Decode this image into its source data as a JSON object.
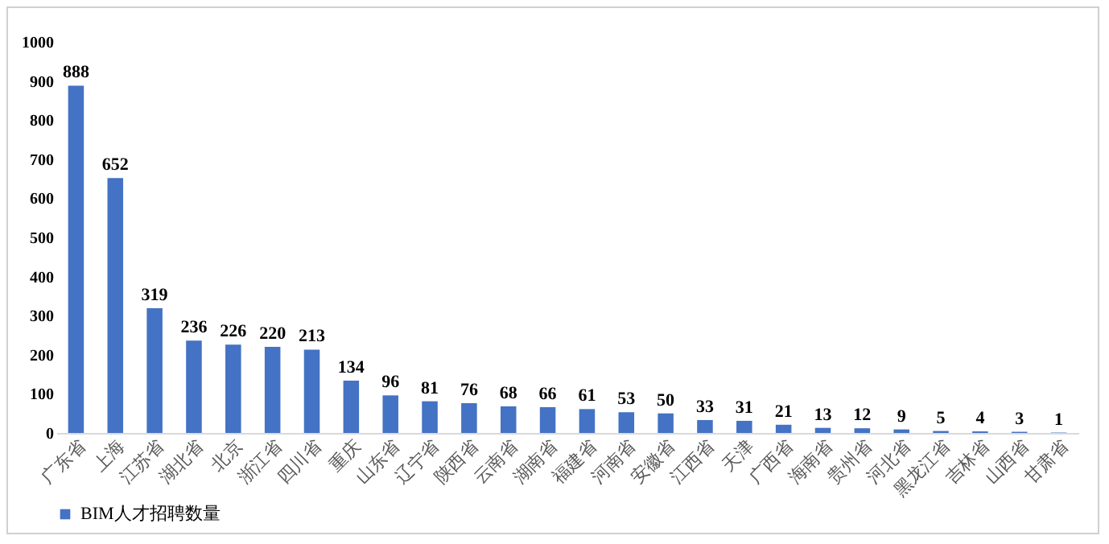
{
  "chart_data": {
    "type": "bar",
    "categories": [
      "广东省",
      "上海",
      "江苏省",
      "湖北省",
      "北京",
      "浙江省",
      "四川省",
      "重庆",
      "山东省",
      "辽宁省",
      "陕西省",
      "云南省",
      "湖南省",
      "福建省",
      "河南省",
      "安徽省",
      "江西省",
      "天津",
      "广西省",
      "海南省",
      "贵州省",
      "河北省",
      "黑龙江省",
      "吉林省",
      "山西省",
      "甘肃省"
    ],
    "series": [
      {
        "name": "BIM人才招聘数量",
        "color": "#4472c4",
        "values": [
          888,
          652,
          319,
          236,
          226,
          220,
          213,
          134,
          96,
          81,
          76,
          68,
          66,
          61,
          53,
          50,
          33,
          31,
          21,
          13,
          12,
          9,
          5,
          4,
          3,
          1
        ]
      }
    ],
    "ylim": [
      0,
      1000
    ],
    "yticks": [
      0,
      100,
      200,
      300,
      400,
      500,
      600,
      700,
      800,
      900,
      1000
    ],
    "grid": false,
    "legend": "bottom",
    "data_labels": true
  }
}
